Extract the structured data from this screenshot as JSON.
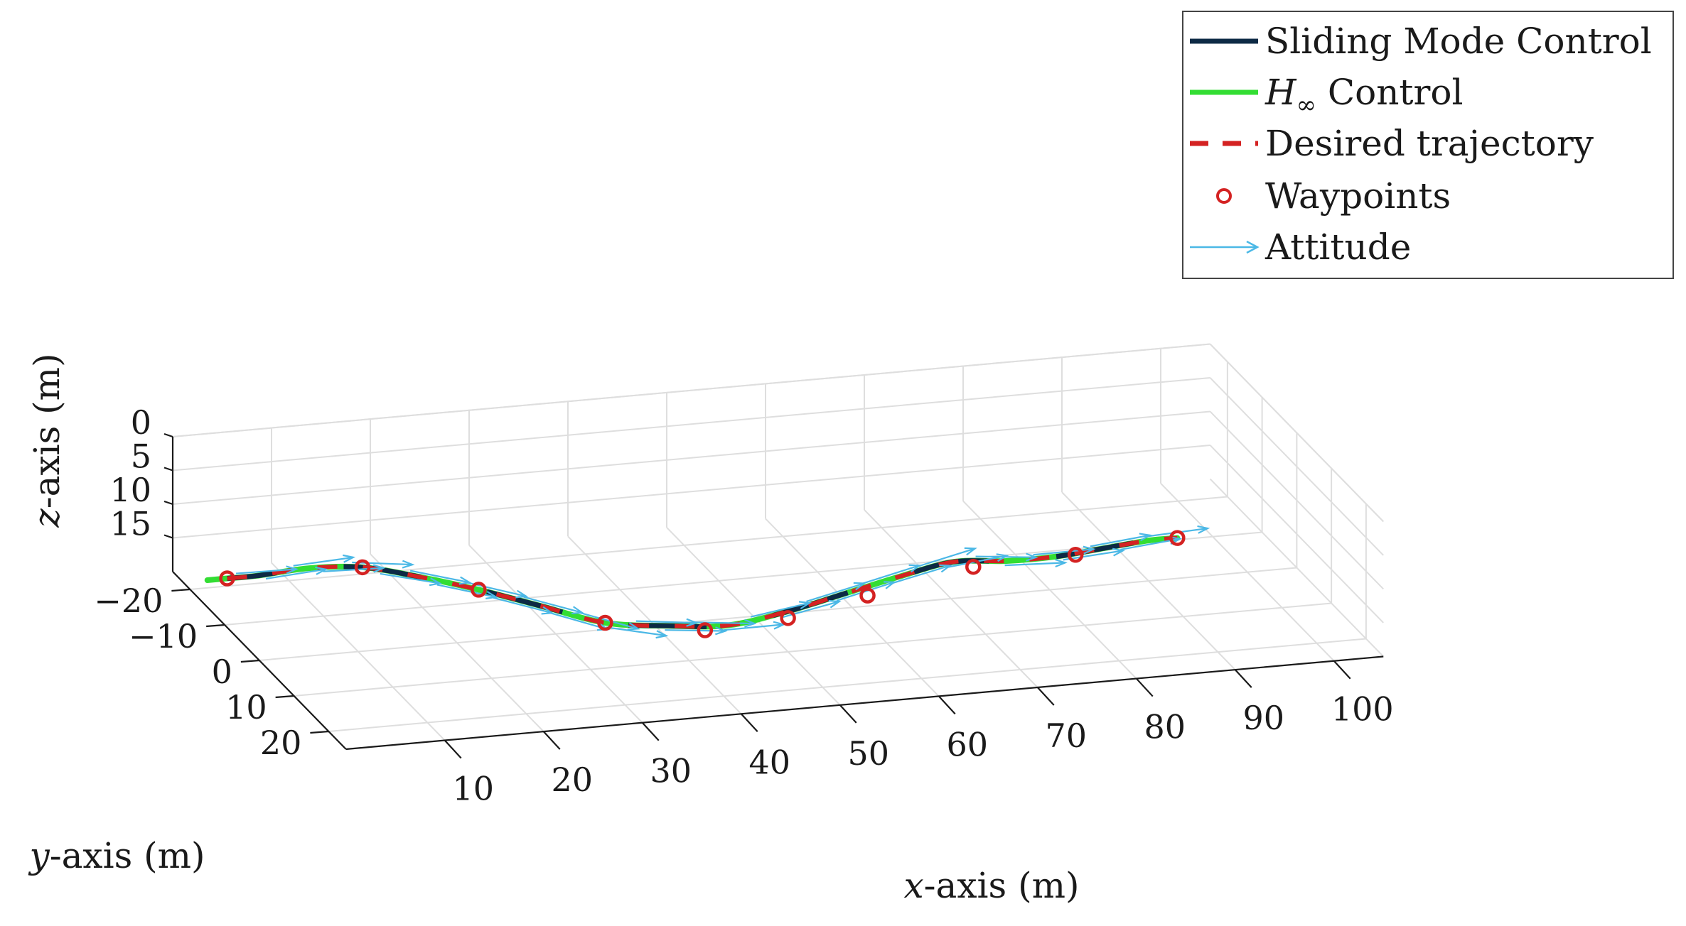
{
  "chart_data": {
    "type": "line",
    "dimensions": "3d",
    "axes": {
      "x": {
        "label_var": "x",
        "label_rest": "-axis (m)",
        "ticks": [
          10,
          20,
          30,
          40,
          50,
          60,
          70,
          80,
          90,
          100
        ],
        "range": [
          0,
          105
        ]
      },
      "y": {
        "label_var": "y",
        "label_rest": "-axis (m)",
        "ticks": [
          -20,
          -10,
          0,
          10,
          20
        ],
        "tick_labels": [
          "−20",
          "−10",
          "0",
          "10",
          "20"
        ],
        "range": [
          -25,
          25
        ]
      },
      "z": {
        "label_var": "z",
        "label_rest": "-axis (m)",
        "ticks": [
          0,
          5,
          10,
          15
        ],
        "range": [
          0,
          20
        ],
        "reversed": true
      }
    },
    "grid": true,
    "legend": {
      "placement": "top-right",
      "entries": [
        {
          "key": "smc",
          "label": "Sliding Mode Control",
          "color": "#0d2a45",
          "style": "solid"
        },
        {
          "key": "hinf",
          "label_main": "H",
          "label_sub": "∞",
          "label_rest": " Control",
          "color": "#33dd33",
          "style": "solid"
        },
        {
          "key": "desired",
          "label": "Desired trajectory",
          "color": "#d42222",
          "style": "dashed"
        },
        {
          "key": "waypoints",
          "label": "Waypoints",
          "color": "#d42222",
          "style": "marker-circle"
        },
        {
          "key": "attitude",
          "label": "Attitude",
          "color": "#4bb8e6",
          "style": "arrow"
        }
      ]
    },
    "series": [
      {
        "name": "Sliding Mode Control",
        "x": [
          2,
          5,
          10,
          15,
          20,
          25,
          30,
          35,
          40,
          45,
          50,
          55,
          60,
          65,
          70,
          75,
          80,
          85,
          88
        ],
        "y": [
          -15,
          -15,
          -14,
          -13,
          -11,
          -8,
          -4,
          0,
          4,
          7,
          10,
          12,
          14,
          15,
          16,
          16,
          15,
          14,
          14
        ],
        "z": [
          16,
          16,
          15,
          15,
          16,
          17,
          18,
          19,
          18,
          17,
          14,
          11,
          8,
          6,
          6,
          6,
          6,
          6,
          6
        ]
      },
      {
        "name": "H∞ Control",
        "x": [
          0,
          2,
          5,
          10,
          15,
          20,
          25,
          30,
          35,
          40,
          45,
          50,
          55,
          60,
          65,
          70,
          75,
          80,
          85,
          88
        ],
        "y": [
          -15,
          -15,
          -15,
          -14,
          -13,
          -11,
          -8,
          -4,
          0,
          4,
          7,
          10,
          12,
          14,
          15,
          16,
          16,
          15,
          14,
          14
        ],
        "z": [
          16,
          16,
          16,
          15,
          15,
          16,
          17,
          18,
          19,
          18,
          17,
          14,
          11,
          8,
          6,
          6,
          6,
          6,
          6,
          6
        ]
      },
      {
        "name": "Desired trajectory",
        "x": [
          2,
          5,
          10,
          15,
          20,
          25,
          30,
          35,
          40,
          45,
          50,
          55,
          60,
          65,
          70,
          75,
          80,
          85,
          88
        ],
        "y": [
          -15,
          -15,
          -14,
          -13,
          -11,
          -8,
          -4,
          0,
          4,
          7,
          10,
          12,
          14,
          15,
          16,
          16,
          15,
          14,
          14
        ],
        "z": [
          16,
          16,
          15,
          15,
          16,
          17,
          18,
          19,
          18,
          17,
          14,
          11,
          8,
          6,
          6,
          6,
          6,
          6,
          6
        ]
      }
    ],
    "waypoints": {
      "x": [
        2,
        15,
        25,
        35,
        43,
        50,
        57,
        67,
        77,
        88
      ],
      "y": [
        -15,
        -13,
        -8,
        0,
        6,
        10,
        13,
        15,
        16,
        14
      ],
      "z": [
        16,
        15,
        17,
        19,
        18,
        15,
        11,
        7,
        6,
        6
      ]
    }
  }
}
